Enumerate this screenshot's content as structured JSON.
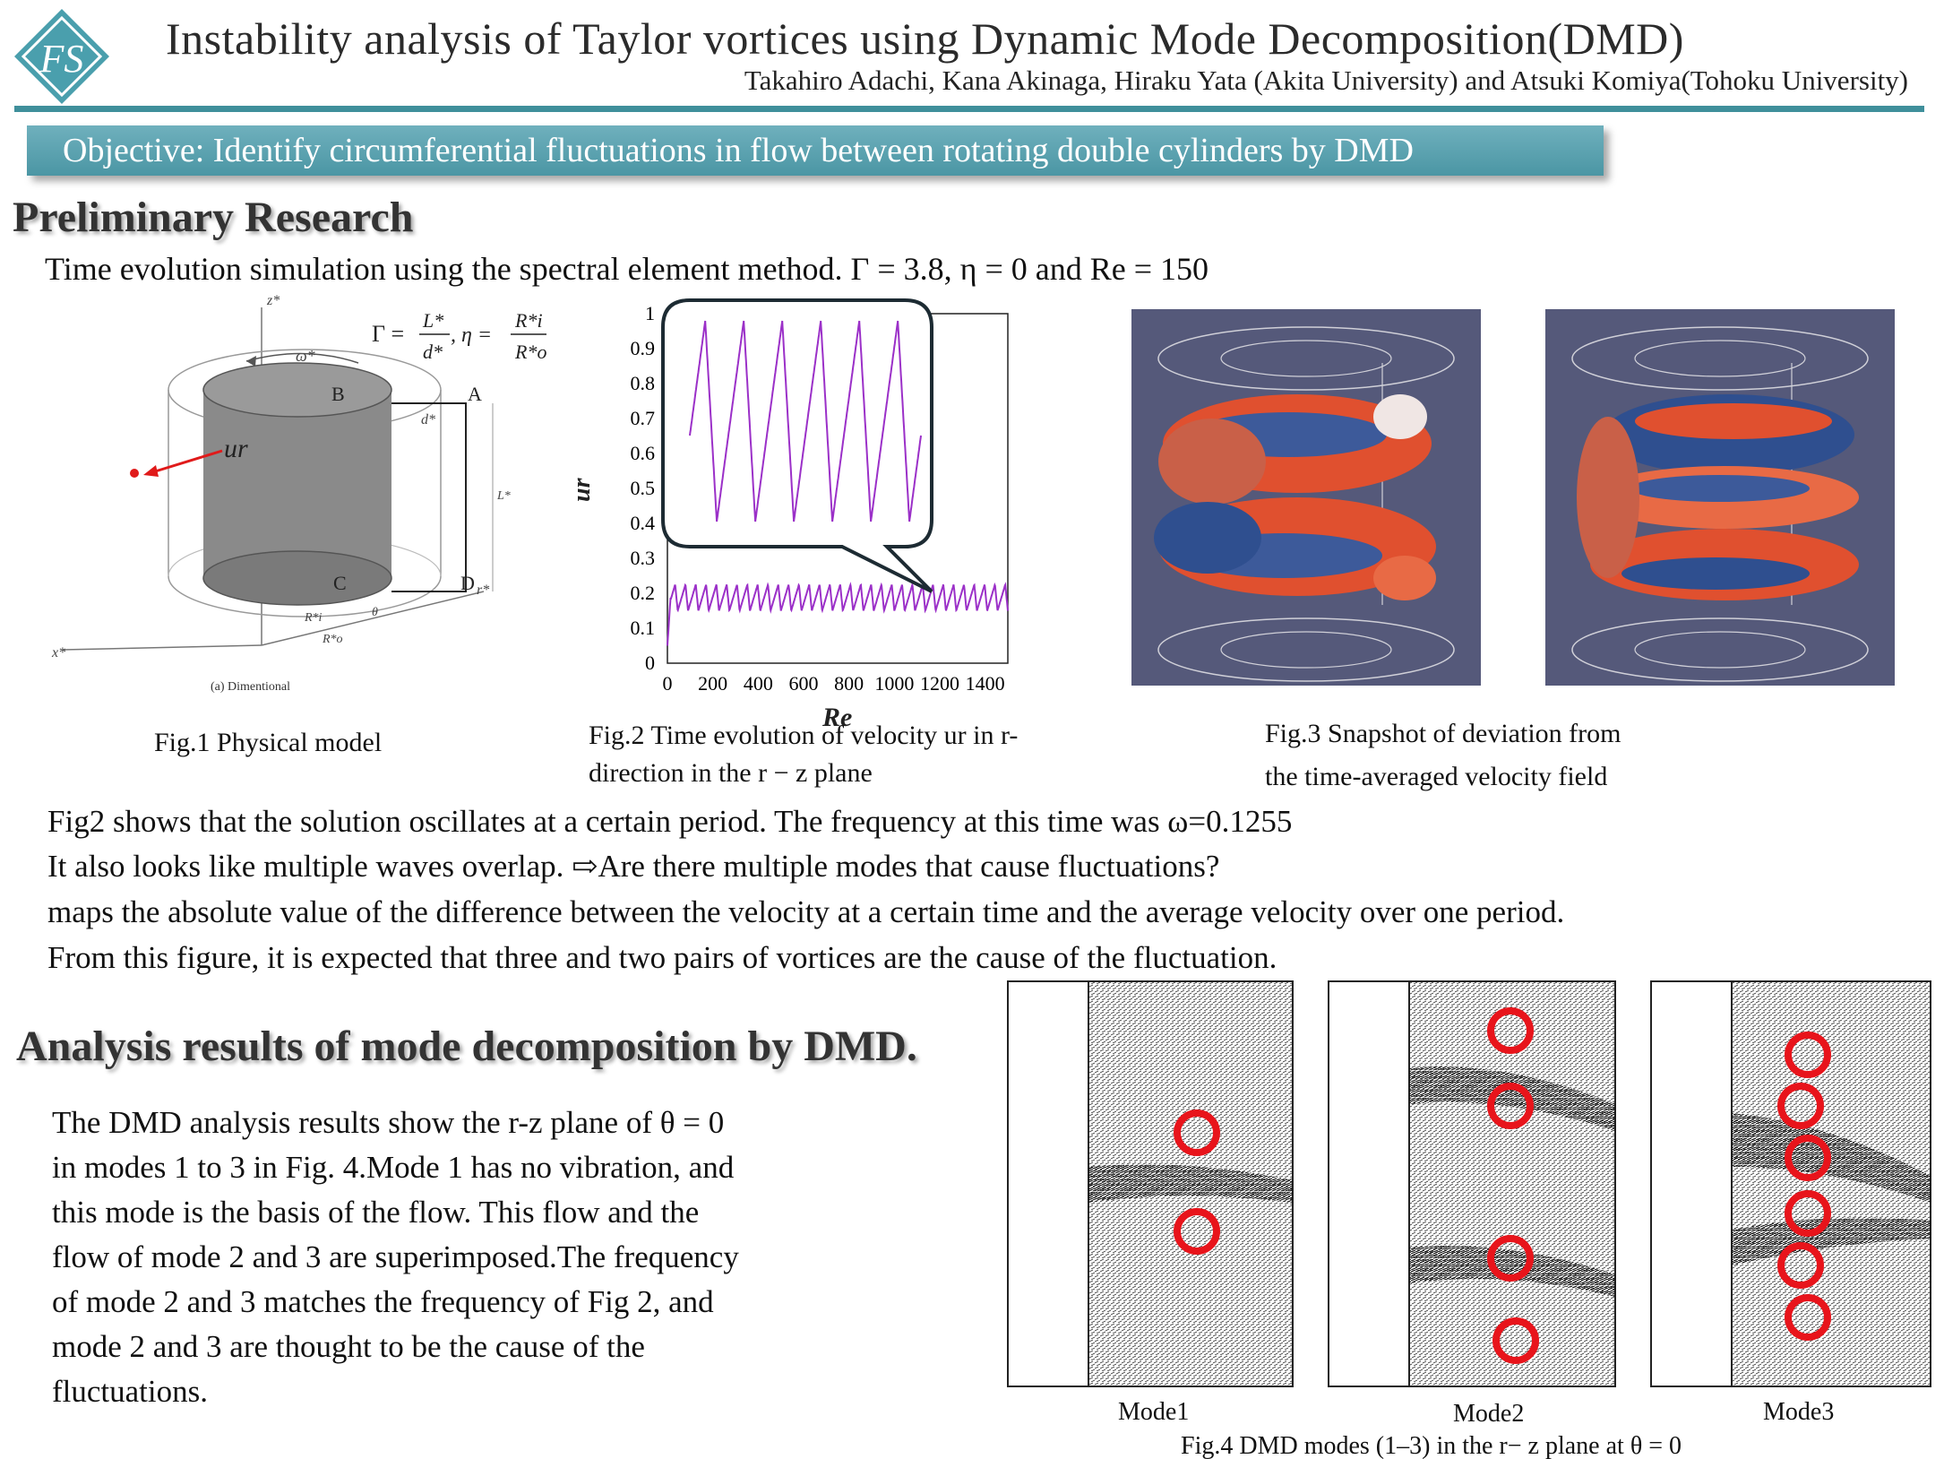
{
  "header": {
    "title": "Instability analysis of Taylor vortices using Dynamic Mode Decomposition(DMD)",
    "authors": "Takahiro Adachi, Kana Akinaga, Hiraku Yata (Akita University) and Atsuki Komiya(Tohoku University)",
    "logo_text": "FS",
    "objective": "Objective: Identify circumferential fluctuations in flow between rotating double cylinders by DMD"
  },
  "preliminary": {
    "heading": "Preliminary Research",
    "intro": "Time evolution simulation using the spectral element method. Γ = 3.8, η = 0 and Re = 150",
    "fig1": {
      "caption": "Fig.1 Physical model",
      "sub_caption": "(a) Dimentional",
      "labels": {
        "z": "z*",
        "x": "x*",
        "r": "r*",
        "omega": "ω*",
        "d": "d*",
        "L": "L*",
        "theta": "θ",
        "ri": "R*i",
        "ro": "R*o",
        "A": "A",
        "B": "B",
        "C": "C",
        "D": "D",
        "ur": "ur",
        "eq_gamma": "Γ =",
        "eq_L": "L*",
        "eq_d": "d*",
        "eq_eta": ", η =",
        "eq_Ri": "R*i",
        "eq_Ro": "R*o"
      }
    },
    "fig2": {
      "caption_line1": "Fig.2 Time evolution of velocity ur in r-",
      "caption_line2": "direction in the r − z plane"
    },
    "fig3": {
      "caption_line1": "Fig.3 Snapshot of deviation from",
      "caption_line2": "the time-averaged velocity field"
    },
    "discussion": [
      "Fig2 shows that the solution oscillates at a certain period. The frequency at this time was ω=0.1255",
      "It also looks like multiple waves overlap. ⇨Are there multiple modes that cause fluctuations?",
      "maps the absolute value of the difference between the velocity at a certain time and the average velocity over one period.",
      "From this figure, it is expected that three and two pairs of vortices are the cause of the fluctuation."
    ]
  },
  "analysis": {
    "heading": "Analysis results of mode decomposition by DMD.",
    "paragraph": [
      "The DMD analysis results show the r-z plane of θ = 0",
      "in modes 1 to 3 in Fig. 4.Mode 1 has no vibration, and",
      "this mode is the basis of the flow. This flow and the",
      "flow of mode 2 and 3 are superimposed.The frequency",
      "of mode 2 and 3 matches the frequency of Fig 2, and",
      "mode 2 and 3 are thought to be the cause of the",
      "fluctuations."
    ],
    "fig4": {
      "caption": "Fig.4 DMD modes (1–3) in the r− z plane at θ = 0",
      "modes": [
        {
          "label": "Mode1",
          "circles": 2
        },
        {
          "label": "Mode2",
          "circles": 4
        },
        {
          "label": "Mode3",
          "circles": 6
        }
      ]
    }
  },
  "chart_data": {
    "type": "line",
    "xlabel": "Re",
    "ylabel": "ur",
    "xlim": [
      0,
      1500
    ],
    "ylim": [
      0,
      1
    ],
    "x_ticks": [
      "0",
      "200",
      "400",
      "600",
      "800",
      "1000",
      "1200",
      "1400"
    ],
    "y_ticks": [
      "0",
      "0.1",
      "0.2",
      "0.3",
      "0.4",
      "0.5",
      "0.6",
      "0.7",
      "0.8",
      "0.9",
      "1"
    ],
    "series": [
      {
        "description": "oscillating signal",
        "baseline": 0.2,
        "amplitude_max": 0.225,
        "amplitude_min": 0.15,
        "cycles": 33,
        "color": "#9b30c8"
      }
    ],
    "inset_zoom": {
      "min": 0.42,
      "max": 0.97,
      "cycles": 6,
      "color": "#9b30c8"
    }
  },
  "colors": {
    "accent": "#3f8f9b",
    "signal": "#9b30c8",
    "mode_circle": "#e8141b",
    "snapshot_bg": "#55597a"
  }
}
